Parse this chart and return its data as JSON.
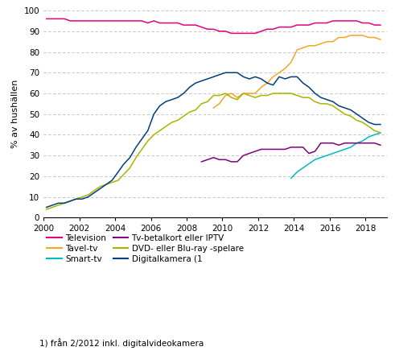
{
  "title": "",
  "ylabel": "% av hushällen",
  "footnote": "1) från 2/2012 inkl. digitalvideokamera",
  "xlim": [
    2000,
    2019.2
  ],
  "ylim": [
    0,
    100
  ],
  "yticks": [
    0,
    10,
    20,
    30,
    40,
    50,
    60,
    70,
    80,
    90,
    100
  ],
  "xticks": [
    2000,
    2002,
    2004,
    2006,
    2008,
    2010,
    2012,
    2014,
    2016,
    2018
  ],
  "legend": [
    {
      "label": "Television",
      "color": "#e6007e"
    },
    {
      "label": "Tavel-tv",
      "color": "#f5a623"
    },
    {
      "label": "Smart-tv",
      "color": "#00b9c8"
    },
    {
      "label": "Tv-betalkort eller IPTV",
      "color": "#800080"
    },
    {
      "label": "DVD- eller Blu-ray -spelare",
      "color": "#a8b400"
    },
    {
      "label": "Digitalkamera (1",
      "color": "#003e7e"
    }
  ],
  "series": {
    "Television": {
      "color": "#e6007e",
      "x": [
        2000.17,
        2000.5,
        2000.83,
        2001.17,
        2001.5,
        2001.83,
        2002.17,
        2002.5,
        2002.83,
        2003.17,
        2003.5,
        2003.83,
        2004.17,
        2004.5,
        2004.83,
        2005.17,
        2005.5,
        2005.83,
        2006.17,
        2006.5,
        2006.83,
        2007.17,
        2007.5,
        2007.83,
        2008.17,
        2008.5,
        2008.83,
        2009.17,
        2009.5,
        2009.83,
        2010.17,
        2010.5,
        2010.83,
        2011.17,
        2011.5,
        2011.83,
        2012.17,
        2012.5,
        2012.83,
        2013.17,
        2013.5,
        2013.83,
        2014.17,
        2014.5,
        2014.83,
        2015.17,
        2015.5,
        2015.83,
        2016.17,
        2016.5,
        2016.83,
        2017.17,
        2017.5,
        2017.83,
        2018.17,
        2018.5,
        2018.83
      ],
      "y": [
        96,
        96,
        96,
        96,
        95,
        95,
        95,
        95,
        95,
        95,
        95,
        95,
        95,
        95,
        95,
        95,
        95,
        94,
        95,
        94,
        94,
        94,
        94,
        93,
        93,
        93,
        92,
        91,
        91,
        90,
        90,
        89,
        89,
        89,
        89,
        89,
        90,
        91,
        91,
        92,
        92,
        92,
        93,
        93,
        93,
        94,
        94,
        94,
        95,
        95,
        95,
        95,
        95,
        94,
        94,
        93,
        93
      ]
    },
    "Tavel_tv": {
      "color": "#f5a623",
      "x": [
        2009.5,
        2009.83,
        2010.17,
        2010.5,
        2010.83,
        2011.17,
        2011.5,
        2011.83,
        2012.17,
        2012.5,
        2012.83,
        2013.17,
        2013.5,
        2013.83,
        2014.17,
        2014.5,
        2014.83,
        2015.17,
        2015.5,
        2015.83,
        2016.17,
        2016.5,
        2016.83,
        2017.17,
        2017.5,
        2017.83,
        2018.17,
        2018.5,
        2018.83
      ],
      "y": [
        53,
        55,
        59,
        60,
        58,
        60,
        60,
        60,
        63,
        65,
        68,
        70,
        72,
        75,
        81,
        82,
        83,
        83,
        84,
        85,
        85,
        87,
        87,
        88,
        88,
        88,
        87,
        87,
        86
      ]
    },
    "Smart_tv": {
      "color": "#00b9c8",
      "x": [
        2013.83,
        2014.17,
        2014.5,
        2014.83,
        2015.17,
        2015.5,
        2015.83,
        2016.17,
        2016.5,
        2016.83,
        2017.17,
        2017.5,
        2017.83,
        2018.17,
        2018.5,
        2018.83
      ],
      "y": [
        19,
        22,
        24,
        26,
        28,
        29,
        30,
        31,
        32,
        33,
        34,
        36,
        37,
        39,
        40,
        41
      ]
    },
    "Tv_betalkort": {
      "color": "#800080",
      "x": [
        2008.83,
        2009.17,
        2009.5,
        2009.83,
        2010.17,
        2010.5,
        2010.83,
        2011.17,
        2011.5,
        2011.83,
        2012.17,
        2012.5,
        2012.83,
        2013.17,
        2013.5,
        2013.83,
        2014.17,
        2014.5,
        2014.83,
        2015.17,
        2015.5,
        2015.83,
        2016.17,
        2016.5,
        2016.83,
        2017.17,
        2017.5,
        2017.83,
        2018.17,
        2018.5,
        2018.83
      ],
      "y": [
        27,
        28,
        29,
        28,
        28,
        27,
        27,
        30,
        31,
        32,
        33,
        33,
        33,
        33,
        33,
        34,
        34,
        34,
        31,
        32,
        36,
        36,
        36,
        35,
        36,
        36,
        36,
        36,
        36,
        36,
        35
      ]
    },
    "DVD": {
      "color": "#a8b400",
      "x": [
        2000.17,
        2000.5,
        2000.83,
        2001.17,
        2001.5,
        2001.83,
        2002.17,
        2002.5,
        2002.83,
        2003.17,
        2003.5,
        2003.83,
        2004.17,
        2004.5,
        2004.83,
        2005.17,
        2005.5,
        2005.83,
        2006.17,
        2006.5,
        2006.83,
        2007.17,
        2007.5,
        2007.83,
        2008.17,
        2008.5,
        2008.83,
        2009.17,
        2009.5,
        2009.83,
        2010.17,
        2010.5,
        2010.83,
        2011.17,
        2011.5,
        2011.83,
        2012.17,
        2012.5,
        2012.83,
        2013.17,
        2013.5,
        2013.83,
        2014.17,
        2014.5,
        2014.83,
        2015.17,
        2015.5,
        2015.83,
        2016.17,
        2016.5,
        2016.83,
        2017.17,
        2017.5,
        2017.83,
        2018.17,
        2018.5,
        2018.83
      ],
      "y": [
        4,
        5,
        6,
        7,
        8,
        9,
        10,
        11,
        13,
        15,
        16,
        17,
        18,
        21,
        24,
        29,
        33,
        37,
        40,
        42,
        44,
        46,
        47,
        49,
        51,
        52,
        55,
        56,
        59,
        59,
        60,
        58,
        57,
        60,
        59,
        58,
        59,
        59,
        60,
        60,
        60,
        60,
        59,
        58,
        58,
        56,
        55,
        55,
        54,
        52,
        50,
        49,
        47,
        46,
        44,
        42,
        41
      ]
    },
    "Digitalkamera": {
      "color": "#003e7e",
      "x": [
        2000.17,
        2000.5,
        2000.83,
        2001.17,
        2001.5,
        2001.83,
        2002.17,
        2002.5,
        2002.83,
        2003.17,
        2003.5,
        2003.83,
        2004.17,
        2004.5,
        2004.83,
        2005.17,
        2005.5,
        2005.83,
        2006.17,
        2006.5,
        2006.83,
        2007.17,
        2007.5,
        2007.83,
        2008.17,
        2008.5,
        2008.83,
        2009.17,
        2009.5,
        2009.83,
        2010.17,
        2010.5,
        2010.83,
        2011.17,
        2011.5,
        2011.83,
        2012.17,
        2012.5,
        2012.83,
        2013.17,
        2013.5,
        2013.83,
        2014.17,
        2014.5,
        2014.83,
        2015.17,
        2015.5,
        2015.83,
        2016.17,
        2016.5,
        2016.83,
        2017.17,
        2017.5,
        2017.83,
        2018.17,
        2018.5,
        2018.83
      ],
      "y": [
        5,
        6,
        7,
        7,
        8,
        9,
        9,
        10,
        12,
        14,
        16,
        18,
        22,
        26,
        29,
        34,
        38,
        42,
        50,
        54,
        56,
        57,
        58,
        60,
        63,
        65,
        66,
        67,
        68,
        69,
        70,
        70,
        70,
        68,
        67,
        68,
        67,
        65,
        64,
        68,
        67,
        68,
        68,
        65,
        63,
        60,
        58,
        57,
        56,
        54,
        53,
        52,
        50,
        48,
        46,
        45,
        45
      ]
    }
  }
}
